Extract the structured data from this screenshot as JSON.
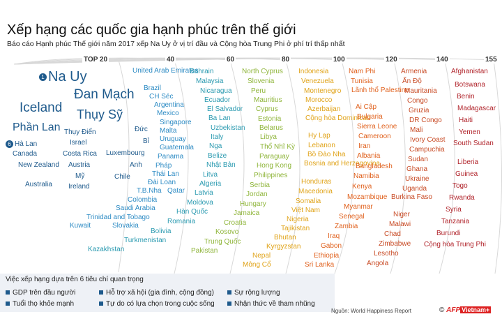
{
  "title": "Xếp hạng các quốc gia hạnh phúc trên thế giới",
  "subtitle": "Báo cáo Hạnh phúc Thế giới năm 2017 xếp Na Uy ở vị trí đầu và Cộng hòa Trung Phi ở phí trí thấp nhất",
  "colors": {
    "band1": "#1e5a8c",
    "band2": "#2d8bc4",
    "band3": "#3bab8a",
    "band4": "#8fb53a",
    "band5": "#e0a318",
    "band6": "#e58a1c",
    "band7": "#d4602a",
    "band8": "#c4402a",
    "band9": "#b0232a"
  },
  "rank_labels": [
    "TOP 20",
    "40",
    "60",
    "80",
    "100",
    "120",
    "140",
    "155"
  ],
  "top20": {
    "first_badge": "1",
    "sixth_badge": "6",
    "countries": [
      "Na Uy",
      "Đan Mạch",
      "Iceland",
      "Thụy Sỹ",
      "Phần Lan",
      "Hà Lan",
      "Canada",
      "New Zealand",
      "Australia",
      "Thụy Điển",
      "Israel",
      "Costa Rica",
      "Austria",
      "Mỹ",
      "Ireland",
      "Đức",
      "Bỉ",
      "Luxembourg",
      "Anh",
      "Chile"
    ]
  },
  "band40": [
    "United Arab Emirates",
    "Brazil",
    "CH Séc",
    "Argentina",
    "Mexico",
    "Singapore",
    "Malta",
    "Uruguay",
    "Guatemala",
    "Panama",
    "Pháp",
    "Thái Lan",
    "Đài Loan",
    "T.B.Nha",
    "Qatar",
    "Colombia",
    "Saudi Arabia",
    "Trinidad and Tobago",
    "Kuwait",
    "Slovakia"
  ],
  "band60": [
    "Bahrain",
    "Malaysia",
    "Nicaragua",
    "Ecuador",
    "El Salvador",
    "Ba Lan",
    "Uzbekistan",
    "Italy",
    "Nga",
    "Belize",
    "Nhật Bản",
    "Litva",
    "Algeria",
    "Latvia",
    "Moldova",
    "Hàn Quốc",
    "Romania",
    "Bolivia",
    "Turkmenistan",
    "Kazakhstan"
  ],
  "band80": [
    "North Cyprus",
    "Slovenia",
    "Peru",
    "Mauritius",
    "Cyprus",
    "Estonia",
    "Belarus",
    "Libya",
    "Thổ Nhĩ Kỳ",
    "Paraguay",
    "Hong Kong",
    "Philippines",
    "Serbia",
    "Jordan",
    "Hungary",
    "Jamaica",
    "Croatia",
    "Kosovo",
    "Trung Quốc",
    "Pakistan"
  ],
  "band100": [
    "Indonesia",
    "Venezuela",
    "Montenegro",
    "Morocco",
    "Azerbaijan",
    "Cộng hòa Dominican",
    "Hy Lạp",
    "Lebanon",
    "Bồ Đào Nha",
    "Bosnia and Herzegovina",
    "Honduras",
    "Macedonia",
    "Somalia",
    "Việt Nam",
    "Nigeria",
    "Tajikistan",
    "Bhutan",
    "Kyrgyzstan",
    "Nepal",
    "Mông Cổ"
  ],
  "band120": [
    "Nam Phi",
    "Tunisia",
    "Lãnh thổ Palestine",
    "Ai Cập",
    "Bulgaria",
    "Sierra Leone",
    "Cameroon",
    "Iran",
    "Albania",
    "Bangladesh",
    "Namibia",
    "Kenya",
    "Mozambique",
    "Myanmar",
    "Senegal",
    "Zambia",
    "Iraq",
    "Gabon",
    "Ethiopia",
    "Sri Lanka"
  ],
  "band140": [
    "Armenia",
    "Ấn Độ",
    "Mauritania",
    "Congo",
    "Gruzia",
    "DR Congo",
    "Mali",
    "Ivory Coast",
    "Campuchia",
    "Sudan",
    "Ghana",
    "Ukraine",
    "Uganda",
    "Burkina Faso",
    "Niger",
    "Malawi",
    "Chad",
    "Zimbabwe",
    "Lesotho",
    "Angola"
  ],
  "band155": [
    "Afghanistan",
    "Botswana",
    "Benin",
    "Madagascar",
    "Haiti",
    "Yemen",
    "South Sudan",
    "Liberia",
    "Guinea",
    "Togo",
    "Rwanda",
    "Syria",
    "Tanzania",
    "Burundi",
    "Cộng hòa Trung Phi"
  ],
  "criteria": {
    "title": "Việc xếp hạng dựa trên 6 tiêu chí quan trọng",
    "items": [
      "GDP trên đầu người",
      "Hỗ trợ xã hội (gia đình, cộng đồng)",
      "Sự rộng lượng",
      "Tuổi thọ khỏe mạnh",
      "Tự do có lựa chọn trong cuộc sống",
      "Nhận thức về tham nhũng"
    ]
  },
  "source": "Nguồn: World Happiness Report",
  "credit": {
    "copyright": "©",
    "afp": "AFP",
    "vietnam": "Vietnam+"
  }
}
